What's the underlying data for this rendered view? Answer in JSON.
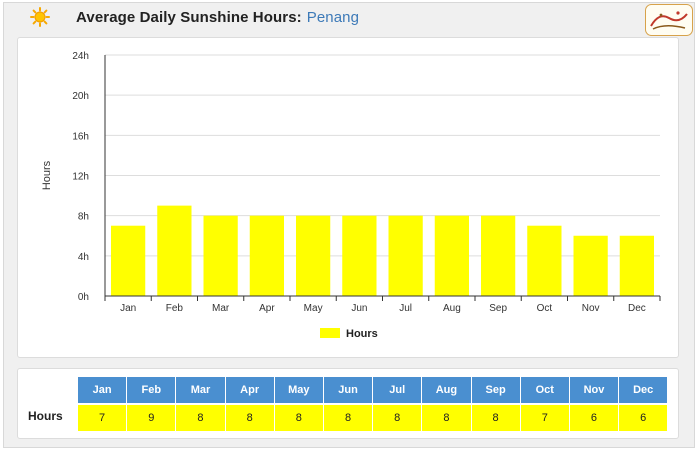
{
  "header": {
    "title": "Average Daily Sunshine Hours:",
    "location": "Penang",
    "icon": "sun-icon",
    "logo": "site-logo"
  },
  "colors": {
    "bar": "#ffff00",
    "header_blue": "#4a8fd0",
    "location_link": "#3d7ab8"
  },
  "chart_data": {
    "type": "bar",
    "categories": [
      "Jan",
      "Feb",
      "Mar",
      "Apr",
      "May",
      "Jun",
      "Jul",
      "Aug",
      "Sep",
      "Oct",
      "Nov",
      "Dec"
    ],
    "series": [
      {
        "name": "Hours",
        "values": [
          7,
          9,
          8,
          8,
          8,
          8,
          8,
          8,
          8,
          7,
          6,
          6
        ]
      }
    ],
    "ylabel": "Hours",
    "ylim": [
      0,
      24
    ],
    "yticks": [
      "0h",
      "4h",
      "8h",
      "12h",
      "16h",
      "20h",
      "24h"
    ],
    "grid": true,
    "legend_position": "bottom-center"
  },
  "table": {
    "row_label": "Hours",
    "months": [
      "Jan",
      "Feb",
      "Mar",
      "Apr",
      "May",
      "Jun",
      "Jul",
      "Aug",
      "Sep",
      "Oct",
      "Nov",
      "Dec"
    ],
    "values": [
      "7",
      "9",
      "8",
      "8",
      "8",
      "8",
      "8",
      "8",
      "8",
      "7",
      "6",
      "6"
    ]
  }
}
